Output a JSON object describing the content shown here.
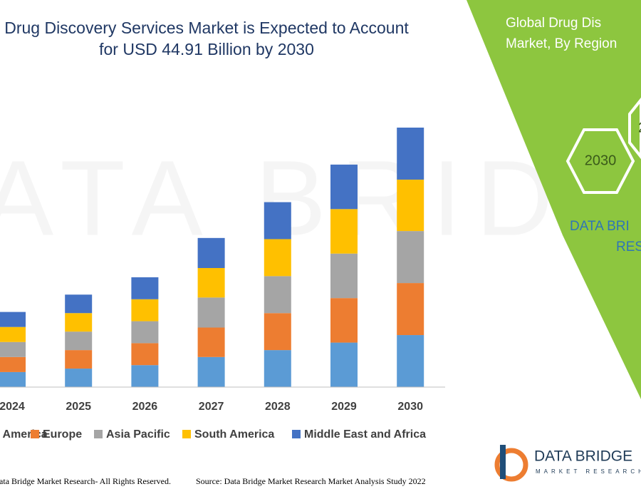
{
  "chart_data": {
    "type": "stacked_bar",
    "title": "Drug Discovery Services Market is Expected to Account\nfor USD 44.91 Billion by 2030",
    "categories": [
      "2024",
      "2025",
      "2026",
      "2027",
      "2028",
      "2029",
      "2030"
    ],
    "series": [
      {
        "name": "North America",
        "color": "#5b9bd5",
        "values": [
          2.6,
          3.2,
          3.8,
          5.2,
          6.4,
          7.7,
          9.0
        ]
      },
      {
        "name": "Europe",
        "color": "#ed7d31",
        "values": [
          2.6,
          3.2,
          3.8,
          5.1,
          6.4,
          7.7,
          9.0
        ]
      },
      {
        "name": "Asia Pacific",
        "color": "#a5a5a5",
        "values": [
          2.6,
          3.2,
          3.8,
          5.2,
          6.4,
          7.7,
          9.0
        ]
      },
      {
        "name": "South America",
        "color": "#ffc000",
        "values": [
          2.6,
          3.2,
          3.8,
          5.1,
          6.4,
          7.7,
          8.9
        ]
      },
      {
        "name": "Middle East and Africa",
        "color": "#4472c4",
        "values": [
          2.6,
          3.2,
          3.8,
          5.2,
          6.4,
          7.7,
          9.0
        ]
      }
    ],
    "legend": "bottom"
  },
  "watermark": "DATA BRIDGE",
  "footer": {
    "copyright": "Data Bridge Market Research- All Rights Reserved.",
    "source": "Source: Data Bridge Market Research Market Analysis Study 2022"
  },
  "panel": {
    "title_lines": [
      "Global Drug Dis",
      "Market, By Region"
    ],
    "hexagons": [
      "2030",
      "2"
    ],
    "brand_lines": [
      "DATA BRI",
      "RES"
    ]
  },
  "logo": {
    "name": "DATA BRIDGE",
    "tagline": "MARKET RESEARCH"
  }
}
